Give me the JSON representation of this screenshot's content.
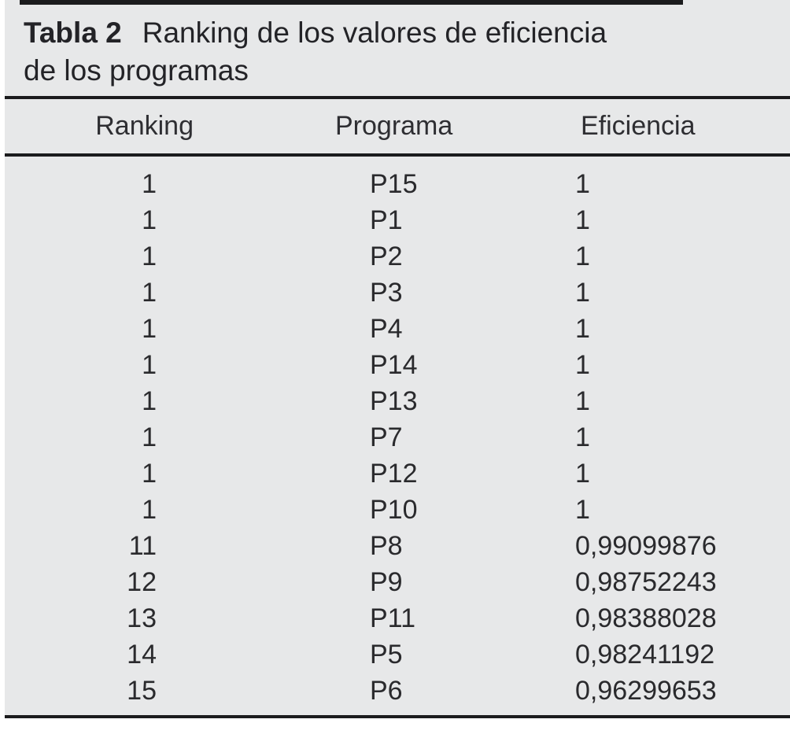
{
  "colors": {
    "panel_bg": "#e7e8e9",
    "rule": "#1b1b1d",
    "text": "#2a2a2d"
  },
  "caption": {
    "label": "Tabla 2",
    "line1": "Ranking de los valores de eficiencia",
    "line2": "de los programas"
  },
  "table": {
    "headers": [
      "Ranking",
      "Programa",
      "Eficiencia"
    ],
    "rows": [
      [
        "1",
        "P15",
        "1"
      ],
      [
        "1",
        "P1",
        "1"
      ],
      [
        "1",
        "P2",
        "1"
      ],
      [
        "1",
        "P3",
        "1"
      ],
      [
        "1",
        "P4",
        "1"
      ],
      [
        "1",
        "P14",
        "1"
      ],
      [
        "1",
        "P13",
        "1"
      ],
      [
        "1",
        "P7",
        "1"
      ],
      [
        "1",
        "P12",
        "1"
      ],
      [
        "1",
        "P10",
        "1"
      ],
      [
        "11",
        "P8",
        "0,99099876"
      ],
      [
        "12",
        "P9",
        "0,98752243"
      ],
      [
        "13",
        "P11",
        "0,98388028"
      ],
      [
        "14",
        "P5",
        "0,98241192"
      ],
      [
        "15",
        "P6",
        "0,96299653"
      ]
    ]
  }
}
